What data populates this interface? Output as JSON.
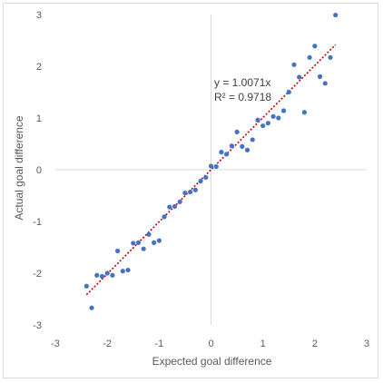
{
  "chart_data": {
    "type": "scatter",
    "title": "",
    "xlabel": "Expected goal difference",
    "ylabel": "Actual goal difference",
    "xlim": [
      -3,
      3
    ],
    "ylim": [
      -3,
      3
    ],
    "xticks": [
      "-3",
      "-2",
      "-1",
      "0",
      "1",
      "2",
      "3"
    ],
    "yticks": [
      "-3",
      "-2",
      "-1",
      "0",
      "1",
      "2",
      "3"
    ],
    "grid": false,
    "legend": "none",
    "point_color": "#4472c4",
    "trendline": {
      "slope": 1.0071,
      "intercept": 0,
      "x_range": [
        -2.4,
        2.4
      ],
      "color": "#c00000",
      "style": "dotted"
    },
    "annotation": {
      "equation": "y = 1.0071x",
      "r2": "R² = 0.9718"
    },
    "points": [
      [
        -2.4,
        -2.25
      ],
      [
        -2.3,
        -2.67
      ],
      [
        -2.2,
        -2.04
      ],
      [
        -2.1,
        -2.06
      ],
      [
        -2.0,
        -2.0
      ],
      [
        -1.9,
        -2.04
      ],
      [
        -1.8,
        -1.57
      ],
      [
        -1.7,
        -1.96
      ],
      [
        -1.6,
        -1.94
      ],
      [
        -1.5,
        -1.42
      ],
      [
        -1.4,
        -1.41
      ],
      [
        -1.3,
        -1.53
      ],
      [
        -1.2,
        -1.25
      ],
      [
        -1.1,
        -1.41
      ],
      [
        -1.0,
        -1.37
      ],
      [
        -0.9,
        -0.91
      ],
      [
        -0.8,
        -0.72
      ],
      [
        -0.7,
        -0.71
      ],
      [
        -0.6,
        -0.62
      ],
      [
        -0.5,
        -0.45
      ],
      [
        -0.4,
        -0.43
      ],
      [
        -0.3,
        -0.39
      ],
      [
        -0.2,
        -0.22
      ],
      [
        -0.1,
        -0.15
      ],
      [
        0.0,
        0.07
      ],
      [
        0.1,
        0.06
      ],
      [
        0.2,
        0.34
      ],
      [
        0.3,
        0.3
      ],
      [
        0.4,
        0.46
      ],
      [
        0.5,
        0.73
      ],
      [
        0.6,
        0.45
      ],
      [
        0.7,
        0.38
      ],
      [
        0.8,
        0.58
      ],
      [
        0.9,
        0.96
      ],
      [
        1.0,
        0.85
      ],
      [
        1.1,
        0.9
      ],
      [
        1.2,
        1.03
      ],
      [
        1.3,
        1.0
      ],
      [
        1.4,
        1.14
      ],
      [
        1.5,
        1.5
      ],
      [
        1.6,
        2.03
      ],
      [
        1.7,
        1.79
      ],
      [
        1.8,
        1.11
      ],
      [
        1.9,
        2.17
      ],
      [
        2.0,
        2.39
      ],
      [
        2.1,
        1.8
      ],
      [
        2.2,
        1.67
      ],
      [
        2.3,
        2.17
      ],
      [
        2.4,
        2.99
      ]
    ]
  }
}
